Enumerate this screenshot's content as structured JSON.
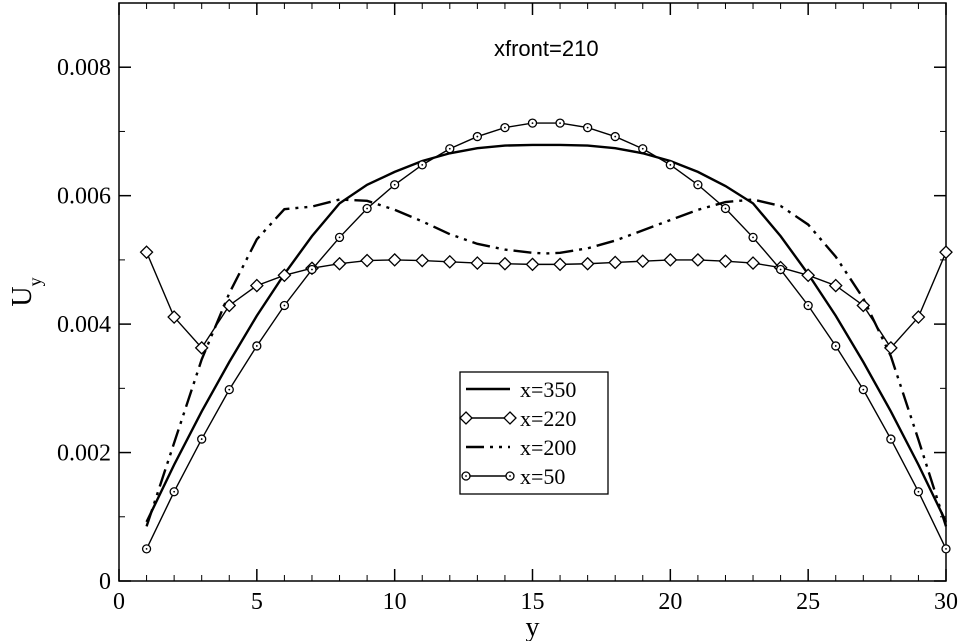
{
  "chart_data": {
    "type": "line",
    "annotation": "xfront=210",
    "xlabel": "y",
    "ylabel": "U",
    "ylabel_sub": "y",
    "xlim": [
      0,
      30
    ],
    "ylim": [
      0,
      0.009
    ],
    "xticks": [
      0,
      5,
      10,
      15,
      20,
      25,
      30
    ],
    "xtick_labels": [
      "0",
      "5",
      "10",
      "15",
      "20",
      "25",
      "30"
    ],
    "yticks": [
      0,
      0.002,
      0.004,
      0.006,
      0.008
    ],
    "ytick_labels": [
      "0",
      "0.002",
      "0.004",
      "0.006",
      "0.008"
    ],
    "grid": false,
    "legend_position": "center-bottom",
    "series": [
      {
        "name": "x=350",
        "style": "solid",
        "marker": "none",
        "color": "#000000",
        "x": [
          1,
          2,
          3,
          4,
          5,
          6,
          7,
          8,
          9,
          10,
          11,
          12,
          13,
          14,
          15,
          15.5,
          16,
          17,
          18,
          19,
          20,
          21,
          22,
          23,
          24,
          25,
          26,
          27,
          28,
          29,
          30
        ],
        "y": [
          0.00092,
          0.00181,
          0.00264,
          0.00341,
          0.00413,
          0.00478,
          0.00537,
          0.00588,
          0.00617,
          0.00637,
          0.00654,
          0.00666,
          0.00674,
          0.00678,
          0.00679,
          0.00679,
          0.00679,
          0.00678,
          0.00674,
          0.00666,
          0.00654,
          0.00637,
          0.00615,
          0.00588,
          0.00537,
          0.00478,
          0.00413,
          0.00341,
          0.00264,
          0.00181,
          0.00092
        ]
      },
      {
        "name": "x=220",
        "style": "solid",
        "marker": "diamond",
        "color": "#000000",
        "x": [
          1,
          2,
          3,
          4,
          5,
          6,
          7,
          8,
          9,
          10,
          11,
          12,
          13,
          14,
          15,
          16,
          17,
          18,
          19,
          20,
          21,
          22,
          23,
          24,
          25,
          26,
          27,
          28,
          29,
          30
        ],
        "y": [
          0.00512,
          0.00411,
          0.00363,
          0.00429,
          0.0046,
          0.00476,
          0.00487,
          0.00494,
          0.00499,
          0.005,
          0.00499,
          0.00497,
          0.00495,
          0.00494,
          0.00493,
          0.00493,
          0.00494,
          0.00496,
          0.00498,
          0.005,
          0.005,
          0.00498,
          0.00495,
          0.00488,
          0.00476,
          0.0046,
          0.00429,
          0.00363,
          0.00411,
          0.00512
        ]
      },
      {
        "name": "x=200",
        "style": "dash-dot-dot",
        "marker": "none",
        "color": "#000000",
        "x": [
          1,
          2,
          3,
          4,
          5,
          6,
          7,
          8,
          9,
          10,
          11,
          12,
          13,
          14,
          15,
          15.5,
          16,
          17,
          18,
          19,
          20,
          21,
          22,
          23,
          24,
          25,
          26,
          27,
          28,
          29,
          30
        ],
        "y": [
          0.00085,
          0.00215,
          0.00345,
          0.00448,
          0.00532,
          0.00579,
          0.00583,
          0.00594,
          0.00592,
          0.00578,
          0.0056,
          0.0054,
          0.00525,
          0.00516,
          0.00511,
          0.0051,
          0.00511,
          0.00518,
          0.0053,
          0.00546,
          0.00562,
          0.00578,
          0.0059,
          0.00594,
          0.00584,
          0.00555,
          0.00505,
          0.0044,
          0.0035,
          0.0022,
          0.00085
        ]
      },
      {
        "name": "x=50",
        "style": "solid",
        "marker": "circle",
        "color": "#000000",
        "x": [
          1,
          2,
          3,
          4,
          5,
          6,
          7,
          8,
          9,
          10,
          11,
          12,
          13,
          14,
          15,
          16,
          17,
          18,
          19,
          20,
          21,
          22,
          23,
          24,
          25,
          26,
          27,
          28,
          29,
          30
        ],
        "y": [
          0.0005,
          0.00139,
          0.00221,
          0.00298,
          0.00366,
          0.00429,
          0.00485,
          0.00535,
          0.0058,
          0.00617,
          0.00648,
          0.00673,
          0.00692,
          0.00706,
          0.00713,
          0.00713,
          0.00706,
          0.00692,
          0.00673,
          0.00648,
          0.00617,
          0.0058,
          0.00535,
          0.00485,
          0.00429,
          0.00366,
          0.00298,
          0.00221,
          0.00139,
          0.0005
        ]
      }
    ]
  }
}
